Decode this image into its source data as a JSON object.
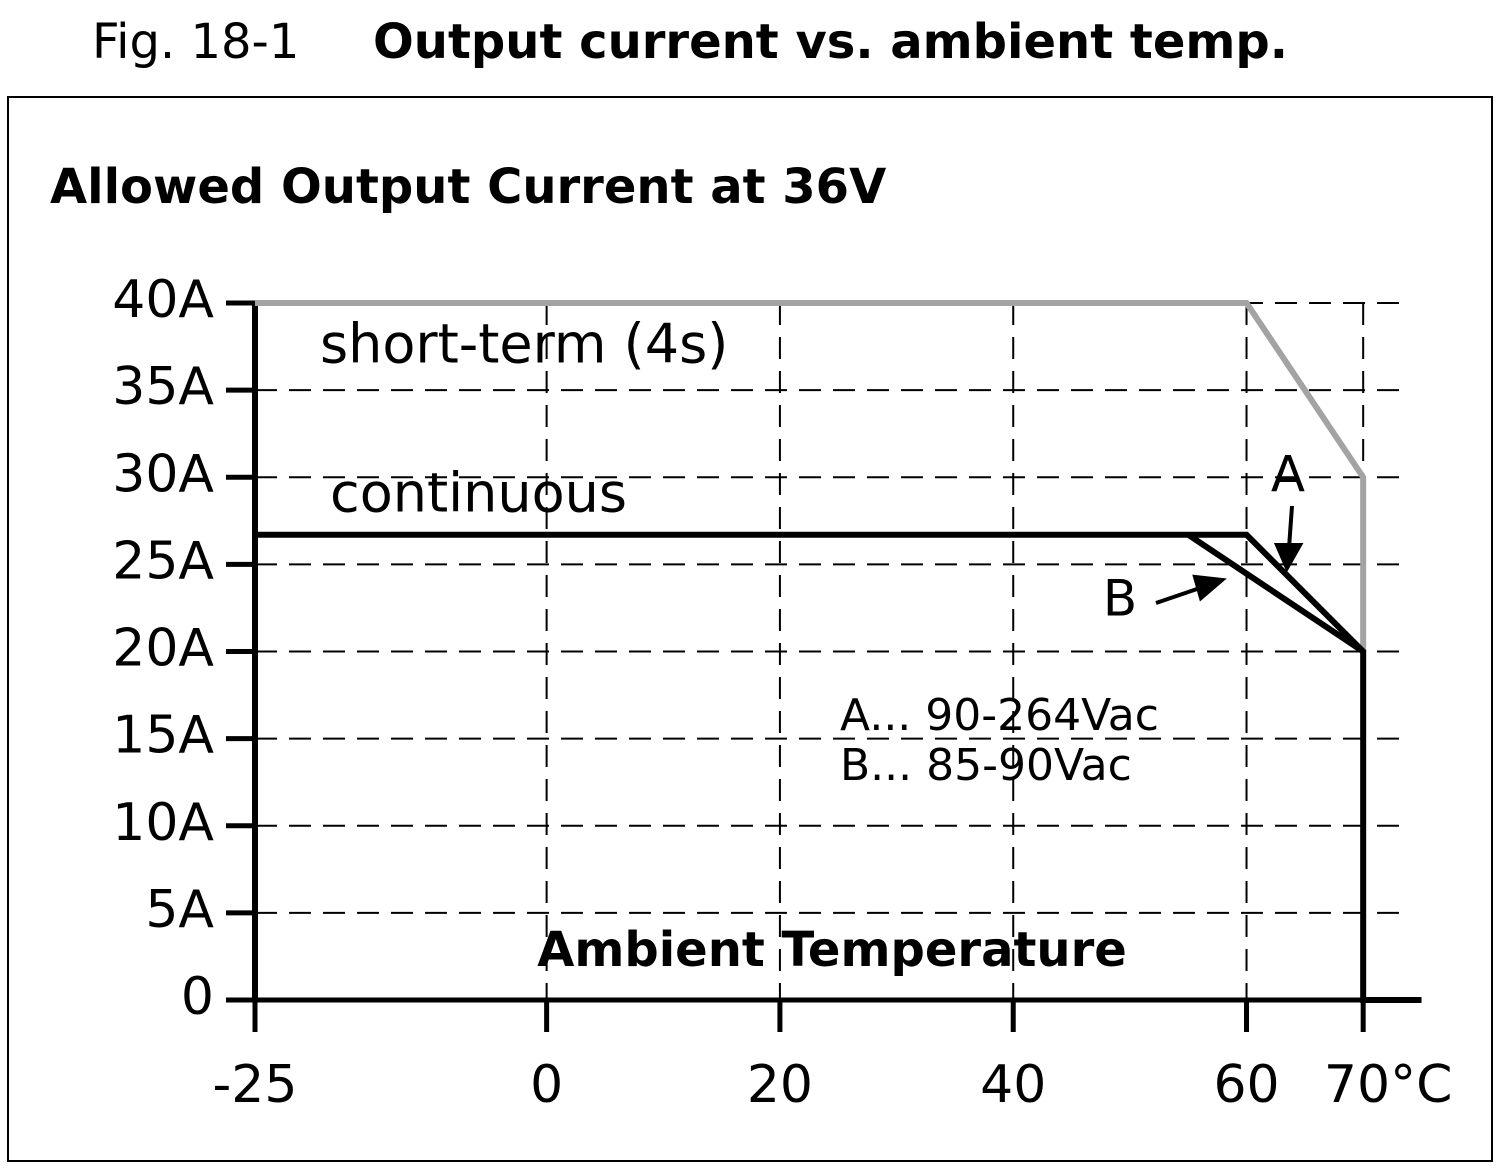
{
  "chart_data": {
    "type": "line",
    "figure_label": "Fig. 18-1",
    "title": "Output current vs. ambient temp.",
    "subtitle": "Allowed Output Current at 36V",
    "x_label": "Ambient Temperature",
    "xlim": [
      -25,
      75
    ],
    "xticks": [
      -25,
      0,
      20,
      40,
      60,
      {
        "value": 70,
        "label": "70°C"
      }
    ],
    "ylim": [
      0,
      40
    ],
    "yticks": [
      0,
      {
        "value": 5,
        "label": "5A"
      },
      {
        "value": 10,
        "label": "10A"
      },
      {
        "value": 15,
        "label": "15A"
      },
      {
        "value": 20,
        "label": "20A"
      },
      {
        "value": 25,
        "label": "25A"
      },
      {
        "value": 30,
        "label": "30A"
      },
      {
        "value": 35,
        "label": "35A"
      },
      {
        "value": 40,
        "label": "40A"
      }
    ],
    "grid": true,
    "series": [
      {
        "name": "short-term (4s)",
        "color": "#a3a3a3",
        "x": [
          -25,
          60,
          70,
          70
        ],
        "values": [
          40,
          40,
          30,
          20
        ]
      },
      {
        "name": "continuous",
        "color": "#000000",
        "x": [
          -25,
          60,
          70,
          70,
          75
        ],
        "values": [
          26.7,
          26.7,
          20,
          0,
          0
        ]
      },
      {
        "color": "#000000",
        "x": [
          55,
          70
        ],
        "values": [
          26.7,
          20
        ]
      }
    ],
    "annotations": [
      "A",
      "B",
      "A... 90-264Vac",
      "B... 85-90Vac"
    ]
  }
}
